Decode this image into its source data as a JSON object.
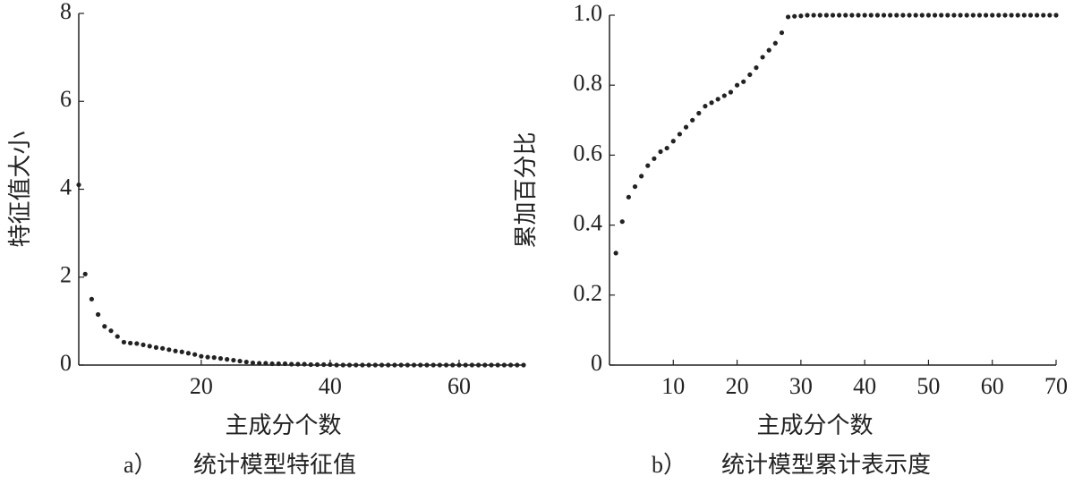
{
  "chart_data": [
    {
      "type": "scatter",
      "x_label": "主成分个数",
      "y_label": "特征值大小",
      "caption_label": "a）",
      "caption": "统计模型特征值",
      "x": [
        1,
        2,
        3,
        4,
        5,
        6,
        7,
        8,
        9,
        10,
        11,
        12,
        13,
        14,
        15,
        16,
        17,
        18,
        19,
        20,
        21,
        22,
        23,
        24,
        25,
        26,
        27,
        28,
        29,
        30,
        31,
        32,
        33,
        34,
        35,
        36,
        37,
        38,
        39,
        40,
        41,
        42,
        43,
        44,
        45,
        46,
        47,
        48,
        49,
        50,
        51,
        52,
        53,
        54,
        55,
        56,
        57,
        58,
        59,
        60,
        61,
        62,
        63,
        64,
        65,
        66,
        67,
        68,
        69,
        70
      ],
      "values": [
        4.1,
        2.07,
        1.5,
        1.15,
        0.88,
        0.78,
        0.65,
        0.52,
        0.5,
        0.49,
        0.46,
        0.43,
        0.4,
        0.38,
        0.35,
        0.32,
        0.3,
        0.27,
        0.24,
        0.2,
        0.18,
        0.17,
        0.15,
        0.13,
        0.11,
        0.09,
        0.07,
        0.05,
        0.04,
        0.04,
        0.03,
        0.03,
        0.03,
        0.02,
        0.02,
        0.02,
        0.01,
        0.01,
        0.01,
        0.01,
        0,
        0,
        0,
        0,
        0,
        0,
        0,
        0,
        0,
        0,
        0,
        0,
        0,
        0,
        0,
        0,
        0,
        0,
        0,
        0,
        0,
        0,
        0,
        0,
        0,
        0,
        0,
        0,
        0,
        0
      ],
      "color": "#222222",
      "xlim": [
        1,
        70
      ],
      "xticks": [
        20,
        40,
        60
      ],
      "ylim": [
        0,
        8
      ],
      "yticks": [
        0,
        2,
        4,
        6,
        8
      ]
    },
    {
      "type": "scatter",
      "x_label": "主成分个数",
      "y_label": "累加百分比",
      "caption_label": "b）",
      "caption": "统计模型累计表示度",
      "x": [
        1,
        2,
        3,
        4,
        5,
        6,
        7,
        8,
        9,
        10,
        11,
        12,
        13,
        14,
        15,
        16,
        17,
        18,
        19,
        20,
        21,
        22,
        23,
        24,
        25,
        26,
        27,
        28,
        29,
        30,
        31,
        32,
        33,
        34,
        35,
        36,
        37,
        38,
        39,
        40,
        41,
        42,
        43,
        44,
        45,
        46,
        47,
        48,
        49,
        50,
        51,
        52,
        53,
        54,
        55,
        56,
        57,
        58,
        59,
        60,
        61,
        62,
        63,
        64,
        65,
        66,
        67,
        68,
        69,
        70
      ],
      "values": [
        0.32,
        0.41,
        0.48,
        0.51,
        0.54,
        0.57,
        0.59,
        0.61,
        0.62,
        0.64,
        0.66,
        0.68,
        0.7,
        0.72,
        0.74,
        0.75,
        0.76,
        0.77,
        0.78,
        0.8,
        0.81,
        0.83,
        0.85,
        0.88,
        0.9,
        0.92,
        0.95,
        0.995,
        0.997,
        0.998,
        1,
        1,
        1,
        1,
        1,
        1,
        1,
        1,
        1,
        1,
        1,
        1,
        1,
        1,
        1,
        1,
        1,
        1,
        1,
        1,
        1,
        1,
        1,
        1,
        1,
        1,
        1,
        1,
        1,
        1,
        1,
        1,
        1,
        1,
        1,
        1,
        1,
        1,
        1,
        1
      ],
      "color": "#222222",
      "xlim": [
        0,
        70
      ],
      "xticks": [
        10,
        20,
        30,
        40,
        50,
        60,
        70
      ],
      "ylim": [
        0,
        1
      ],
      "yticks": [
        0,
        0.2,
        0.4,
        0.6,
        0.8,
        {
          "value": 1,
          "label": "1.0"
        }
      ]
    }
  ]
}
